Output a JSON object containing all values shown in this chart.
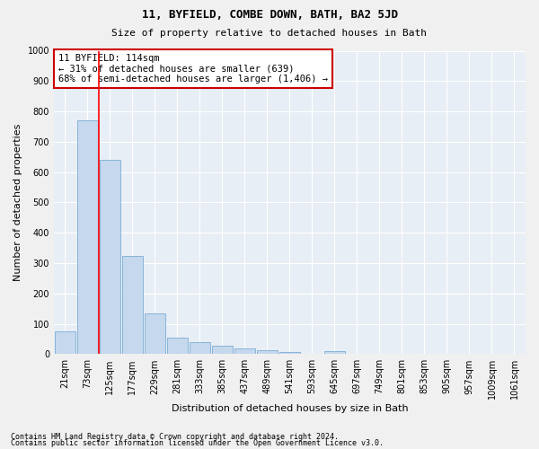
{
  "title": "11, BYFIELD, COMBE DOWN, BATH, BA2 5JD",
  "subtitle": "Size of property relative to detached houses in Bath",
  "xlabel": "Distribution of detached houses by size in Bath",
  "ylabel": "Number of detached properties",
  "footnote1": "Contains HM Land Registry data © Crown copyright and database right 2024.",
  "footnote2": "Contains public sector information licensed under the Open Government Licence v3.0.",
  "categories": [
    "21sqm",
    "73sqm",
    "125sqm",
    "177sqm",
    "229sqm",
    "281sqm",
    "333sqm",
    "385sqm",
    "437sqm",
    "489sqm",
    "541sqm",
    "593sqm",
    "645sqm",
    "697sqm",
    "749sqm",
    "801sqm",
    "853sqm",
    "905sqm",
    "957sqm",
    "1009sqm",
    "1061sqm"
  ],
  "values": [
    75,
    770,
    640,
    325,
    135,
    55,
    38,
    28,
    18,
    14,
    8,
    0,
    10,
    0,
    0,
    0,
    0,
    0,
    0,
    0,
    0
  ],
  "bar_color": "#c5d8ed",
  "bar_edge_color": "#7aadd4",
  "background_color": "#e8eef5",
  "grid_color": "#ffffff",
  "red_line_x": 1.5,
  "annotation_text": "11 BYFIELD: 114sqm\n← 31% of detached houses are smaller (639)\n68% of semi-detached houses are larger (1,406) →",
  "annotation_box_facecolor": "#ffffff",
  "annotation_box_edgecolor": "#cc0000",
  "ylim": [
    0,
    1000
  ],
  "yticks": [
    0,
    100,
    200,
    300,
    400,
    500,
    600,
    700,
    800,
    900,
    1000
  ],
  "title_fontsize": 9,
  "subtitle_fontsize": 8,
  "tick_fontsize": 7,
  "label_fontsize": 8,
  "annot_fontsize": 7.5,
  "footnote_fontsize": 6
}
